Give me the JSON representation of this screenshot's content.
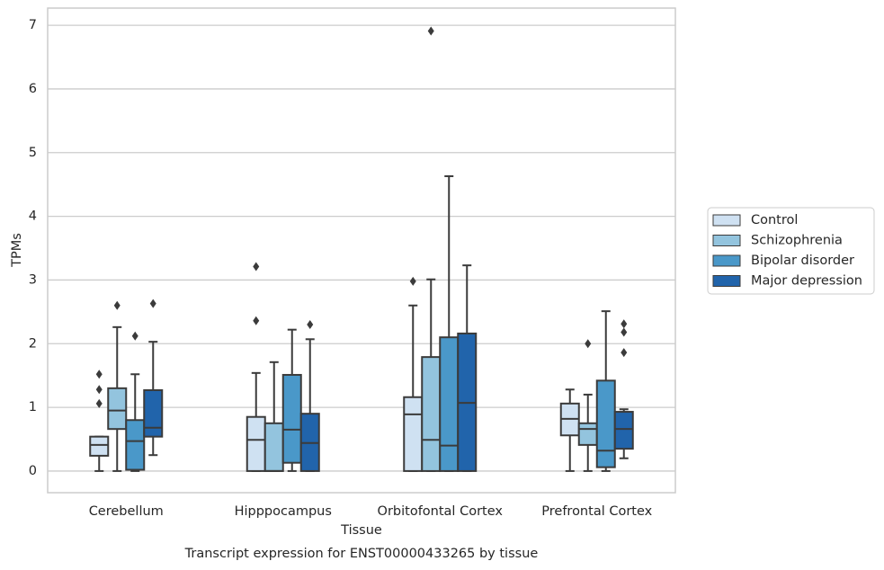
{
  "chart_data": {
    "type": "box",
    "title": "Transcript expression for ENST00000433265 by tissue",
    "x_label": "Tissue",
    "y_label": "TPMs",
    "categories": [
      "Cerebellum",
      "Hipppocampus",
      "Orbitofontal Cortex",
      "Prefrontal Cortex"
    ],
    "ylim": [
      -0.34,
      7.27
    ],
    "yticks": [
      0,
      1,
      2,
      3,
      4,
      5,
      6,
      7
    ],
    "grid": true,
    "legend": "center right",
    "series": [
      {
        "name": "Control",
        "color": "#cfe1f2",
        "boxes": [
          {
            "whislo": 0,
            "q1": 0.24,
            "med": 0.41,
            "q3": 0.54,
            "whishi": 0.54,
            "fliers": [
              1.06,
              1.28,
              1.52
            ]
          },
          {
            "whislo": 0,
            "q1": 0,
            "med": 0.49,
            "q3": 0.85,
            "whishi": 1.54,
            "fliers": [
              2.36,
              3.21
            ]
          },
          {
            "whislo": 0,
            "q1": 0,
            "med": 0.89,
            "q3": 1.16,
            "whishi": 2.6,
            "fliers": [
              2.98
            ]
          },
          {
            "whislo": 0,
            "q1": 0.56,
            "med": 0.82,
            "q3": 1.06,
            "whishi": 1.28,
            "fliers": []
          }
        ]
      },
      {
        "name": "Schizophrenia",
        "color": "#93c4de",
        "boxes": [
          {
            "whislo": 0,
            "q1": 0.66,
            "med": 0.95,
            "q3": 1.3,
            "whishi": 2.26,
            "fliers": [
              2.6
            ]
          },
          {
            "whislo": 0,
            "q1": 0,
            "med": 0,
            "q3": 0.75,
            "whishi": 1.71,
            "fliers": []
          },
          {
            "whislo": 0,
            "q1": 0,
            "med": 0.49,
            "q3": 1.79,
            "whishi": 3.01,
            "fliers": [
              6.91
            ]
          },
          {
            "whislo": 0,
            "q1": 0.41,
            "med": 0.66,
            "q3": 0.75,
            "whishi": 1.2,
            "fliers": [
              2.0
            ]
          }
        ]
      },
      {
        "name": "Bipolar disorder",
        "color": "#4a98c9",
        "boxes": [
          {
            "whislo": 0,
            "q1": 0.02,
            "med": 0.47,
            "q3": 0.8,
            "whishi": 1.52,
            "fliers": [
              2.12
            ]
          },
          {
            "whislo": 0,
            "q1": 0.13,
            "med": 0.65,
            "q3": 1.51,
            "whishi": 2.22,
            "fliers": []
          },
          {
            "whislo": 0,
            "q1": 0,
            "med": 0.4,
            "q3": 2.1,
            "whishi": 4.63,
            "fliers": []
          },
          {
            "whislo": 0,
            "q1": 0.06,
            "med": 0.32,
            "q3": 1.42,
            "whishi": 2.51,
            "fliers": []
          }
        ]
      },
      {
        "name": "Major depression",
        "color": "#2164ab",
        "boxes": [
          {
            "whislo": 0.25,
            "q1": 0.54,
            "med": 0.68,
            "q3": 1.27,
            "whishi": 2.03,
            "fliers": [
              2.63
            ]
          },
          {
            "whislo": 0,
            "q1": 0,
            "med": 0.44,
            "q3": 0.9,
            "whishi": 2.07,
            "fliers": [
              2.3
            ]
          },
          {
            "whislo": 0,
            "q1": 0,
            "med": 1.07,
            "q3": 2.16,
            "whishi": 3.23,
            "fliers": []
          },
          {
            "whislo": 0.2,
            "q1": 0.35,
            "med": 0.66,
            "q3": 0.93,
            "whishi": 0.97,
            "fliers": [
              1.86,
              2.18,
              2.31
            ]
          }
        ]
      }
    ]
  }
}
